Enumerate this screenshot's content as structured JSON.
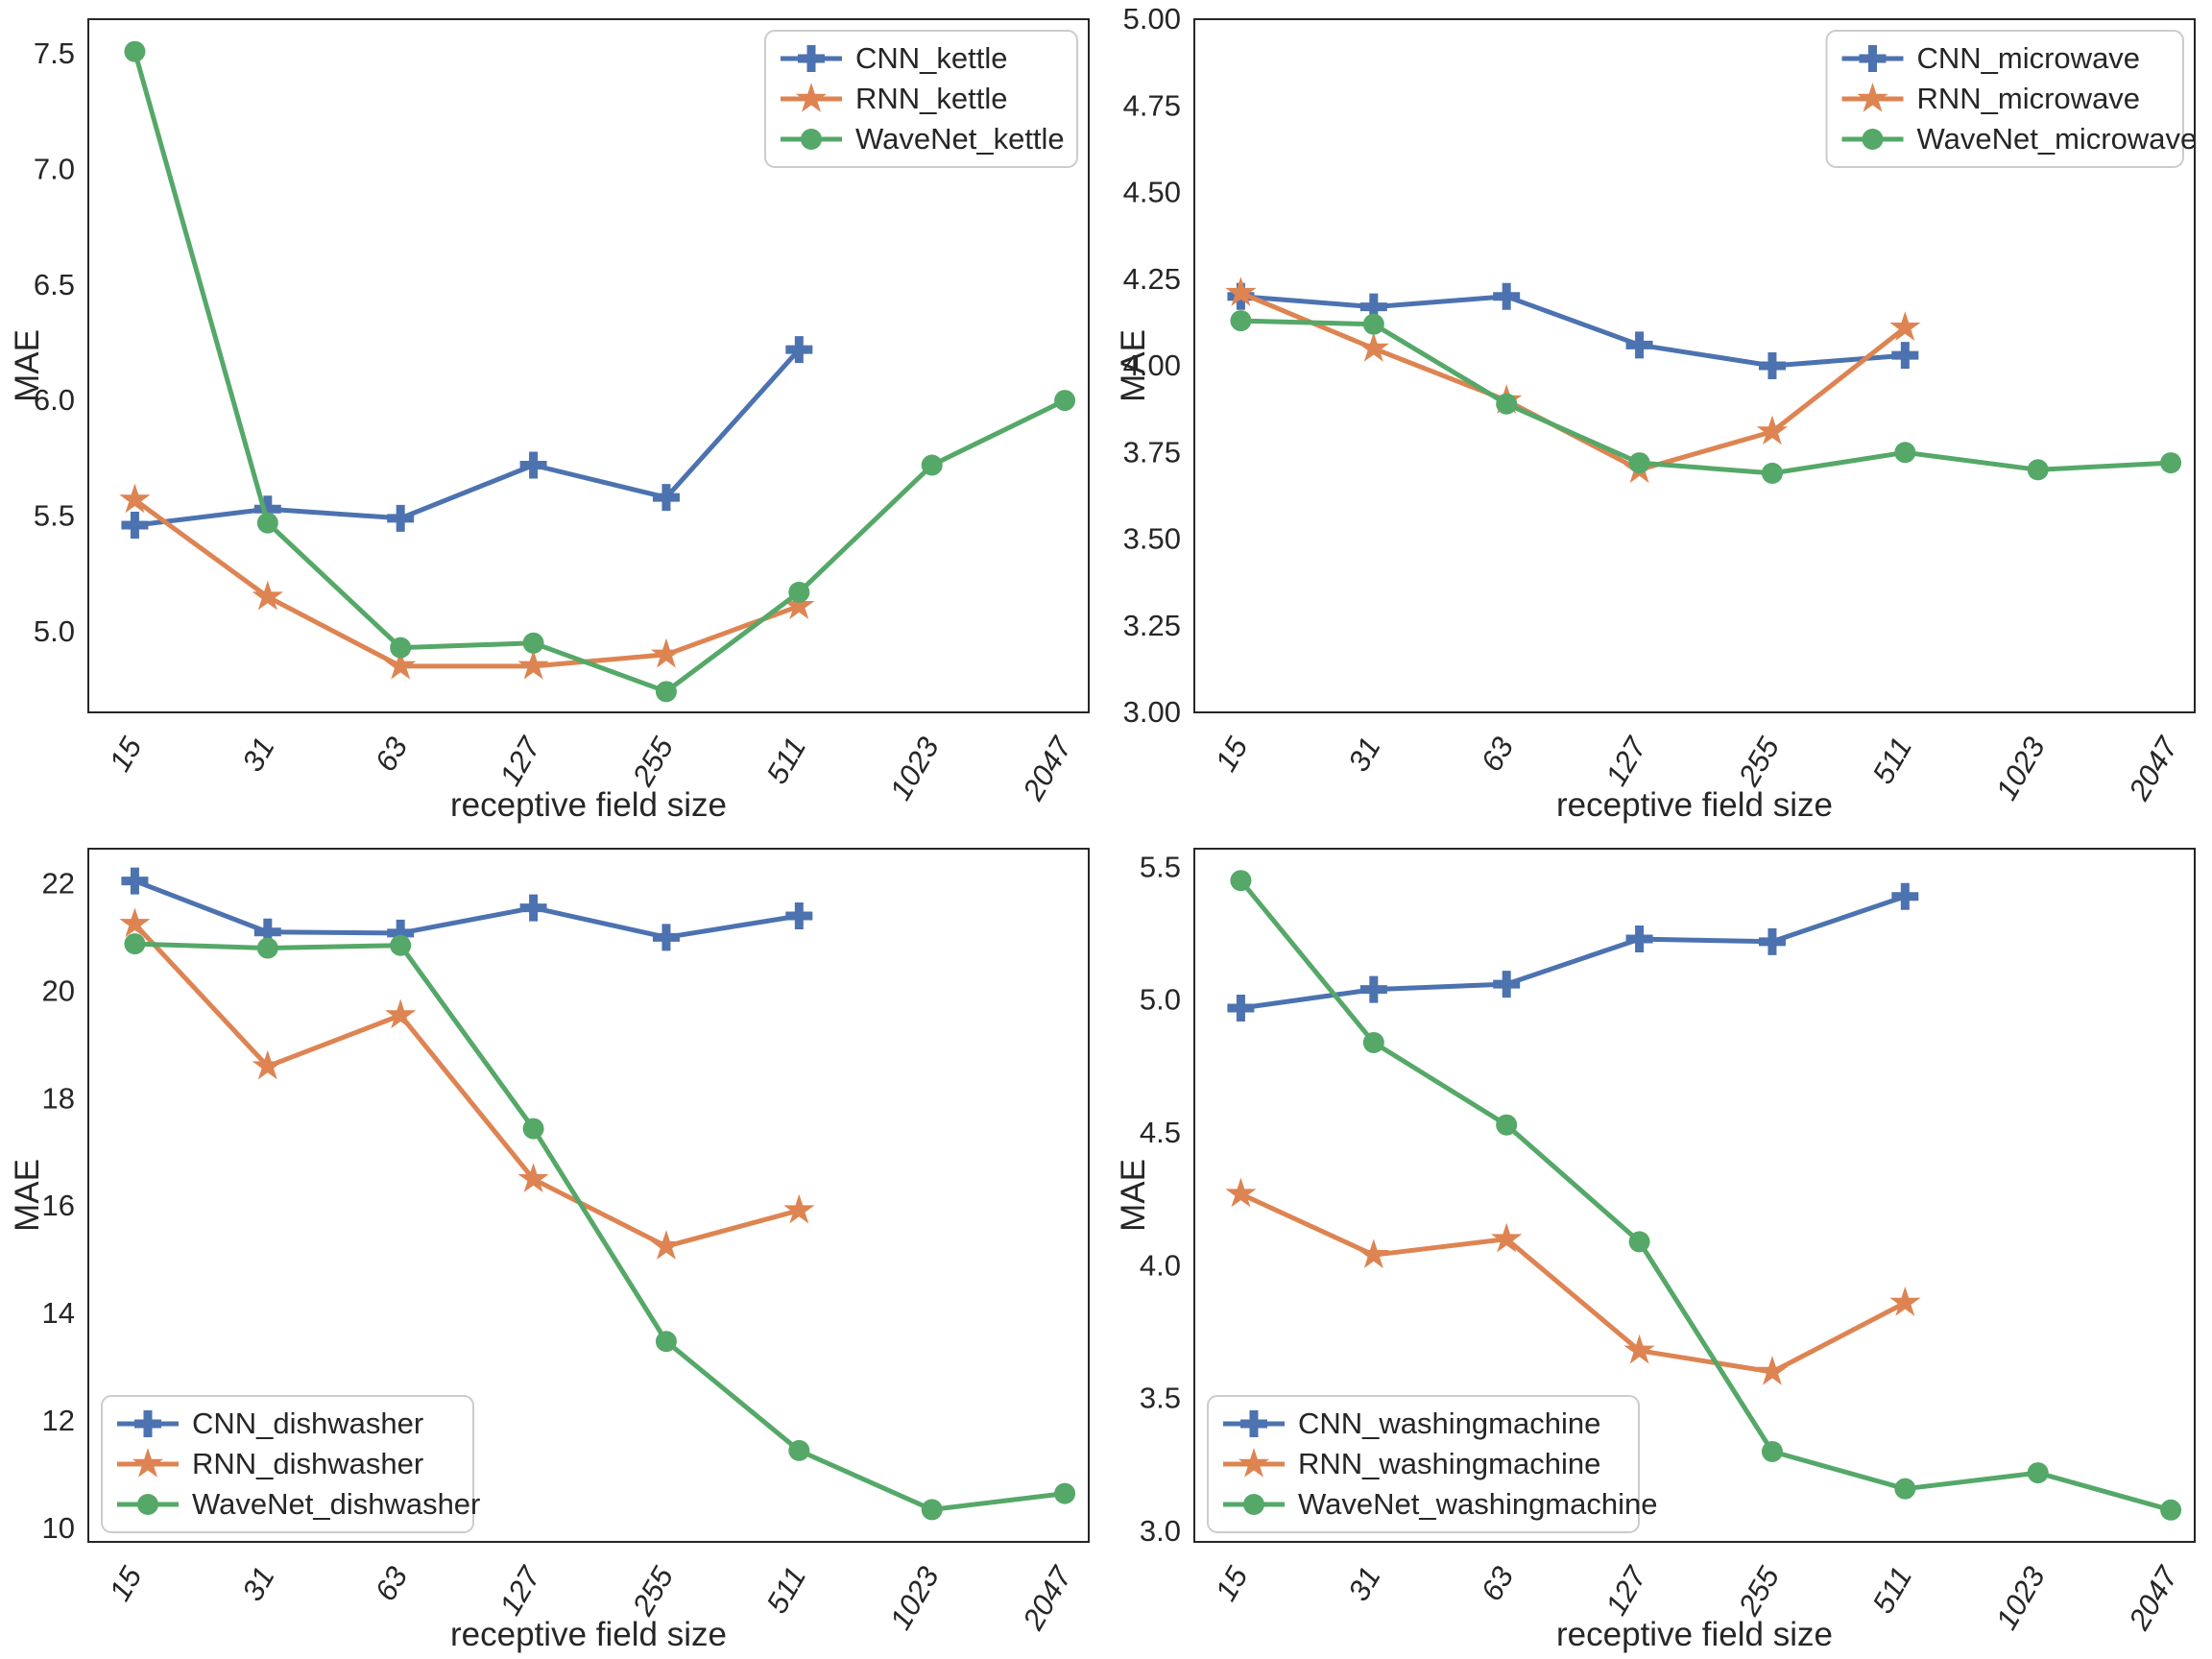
{
  "figure": {
    "xlabel": "receptive field size",
    "ylabel": "MAE",
    "text_color": "#262626",
    "background_color": "#ffffff",
    "spine_color": "#262626",
    "legend_border_color": "#cccccc",
    "palette": {
      "CNN": "#4C72B0",
      "RNN": "#DD8452",
      "WaveNet": "#55A868"
    }
  },
  "chart_data": [
    {
      "type": "line",
      "appliance": "kettle",
      "xlabel": "receptive field size",
      "ylabel": "MAE",
      "grid": false,
      "categories": [
        "15",
        "31",
        "63",
        "127",
        "255",
        "511",
        "1023",
        "2047"
      ],
      "ylim": [
        4.65,
        7.65
      ],
      "ytick_values": [
        5.0,
        5.5,
        6.0,
        6.5,
        7.0,
        7.5
      ],
      "ytick_labels": [
        "5.0",
        "5.5",
        "6.0",
        "6.5",
        "7.0",
        "7.5"
      ],
      "legend_loc": "upper right",
      "series": [
        {
          "name": "CNN_kettle",
          "color": "#4C72B0",
          "marker": "plus",
          "values": [
            5.46,
            5.53,
            5.49,
            5.72,
            5.58,
            6.22
          ]
        },
        {
          "name": "RNN_kettle",
          "color": "#DD8452",
          "marker": "star",
          "values": [
            5.57,
            5.15,
            4.85,
            4.85,
            4.9,
            5.11
          ]
        },
        {
          "name": "WaveNet_kettle",
          "color": "#55A868",
          "marker": "circle",
          "values": [
            7.51,
            5.47,
            4.93,
            4.95,
            4.74,
            5.17,
            5.72,
            6.0
          ]
        }
      ]
    },
    {
      "type": "line",
      "appliance": "microwave",
      "xlabel": "receptive field size",
      "ylabel": "MAE",
      "grid": false,
      "categories": [
        "15",
        "31",
        "63",
        "127",
        "255",
        "511",
        "1023",
        "2047"
      ],
      "ylim": [
        3.0,
        5.0
      ],
      "ytick_values": [
        3.0,
        3.25,
        3.5,
        3.75,
        4.0,
        4.25,
        4.5,
        4.75,
        5.0
      ],
      "ytick_labels": [
        "3.00",
        "3.25",
        "3.50",
        "3.75",
        "4.00",
        "4.25",
        "4.50",
        "4.75",
        "5.00"
      ],
      "legend_loc": "upper right",
      "series": [
        {
          "name": "CNN_microwave",
          "color": "#4C72B0",
          "marker": "plus",
          "values": [
            4.2,
            4.17,
            4.2,
            4.06,
            4.0,
            4.03
          ]
        },
        {
          "name": "RNN_microwave",
          "color": "#DD8452",
          "marker": "star",
          "values": [
            4.21,
            4.05,
            3.9,
            3.7,
            3.81,
            4.11
          ]
        },
        {
          "name": "WaveNet_microwave",
          "color": "#55A868",
          "marker": "circle",
          "values": [
            4.13,
            4.12,
            3.89,
            3.72,
            3.69,
            3.75,
            3.7,
            3.72
          ]
        }
      ]
    },
    {
      "type": "line",
      "appliance": "dishwasher",
      "xlabel": "receptive field size",
      "ylabel": "MAE",
      "grid": false,
      "categories": [
        "15",
        "31",
        "63",
        "127",
        "255",
        "511",
        "1023",
        "2047"
      ],
      "ylim": [
        9.75,
        22.65
      ],
      "ytick_values": [
        10,
        12,
        14,
        16,
        18,
        20,
        22
      ],
      "ytick_labels": [
        "10",
        "12",
        "14",
        "16",
        "18",
        "20",
        "22"
      ],
      "legend_loc": "lower left",
      "series": [
        {
          "name": "CNN_dishwasher",
          "color": "#4C72B0",
          "marker": "plus",
          "values": [
            22.05,
            21.1,
            21.08,
            21.55,
            21.0,
            21.4
          ]
        },
        {
          "name": "RNN_dishwasher",
          "color": "#DD8452",
          "marker": "star",
          "values": [
            21.25,
            18.6,
            19.55,
            16.5,
            15.25,
            15.92
          ]
        },
        {
          "name": "WaveNet_dishwasher",
          "color": "#55A868",
          "marker": "circle",
          "values": [
            20.88,
            20.8,
            20.85,
            17.44,
            13.48,
            11.45,
            10.35,
            10.65
          ]
        }
      ]
    },
    {
      "type": "line",
      "appliance": "washingmachine",
      "xlabel": "receptive field size",
      "ylabel": "MAE",
      "grid": false,
      "categories": [
        "15",
        "31",
        "63",
        "127",
        "255",
        "511",
        "1023",
        "2047"
      ],
      "ylim": [
        2.96,
        5.57
      ],
      "ytick_values": [
        3.0,
        3.5,
        4.0,
        4.5,
        5.0,
        5.5
      ],
      "ytick_labels": [
        "3.0",
        "3.5",
        "4.0",
        "4.5",
        "5.0",
        "5.5"
      ],
      "legend_loc": "lower left",
      "series": [
        {
          "name": "CNN_washingmachine",
          "color": "#4C72B0",
          "marker": "plus",
          "values": [
            4.97,
            5.04,
            5.06,
            5.23,
            5.22,
            5.39
          ]
        },
        {
          "name": "RNN_washingmachine",
          "color": "#DD8452",
          "marker": "star",
          "values": [
            4.27,
            4.04,
            4.1,
            3.68,
            3.6,
            3.86
          ]
        },
        {
          "name": "WaveNet_washingmachine",
          "color": "#55A868",
          "marker": "circle",
          "values": [
            5.45,
            4.84,
            4.53,
            4.09,
            3.3,
            3.16,
            3.22,
            3.08
          ]
        }
      ]
    }
  ]
}
